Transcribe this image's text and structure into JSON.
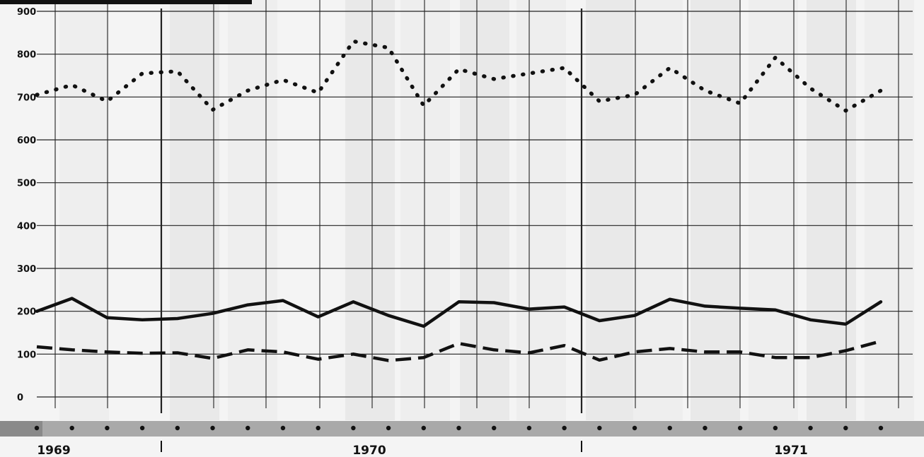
{
  "chart_data": {
    "type": "line",
    "title": "",
    "xlabel": "",
    "ylabel": "",
    "ylim": [
      0,
      900
    ],
    "yticks": [
      0,
      100,
      200,
      300,
      400,
      500,
      600,
      700,
      800,
      900
    ],
    "x_start": "1969",
    "x_end": "1971",
    "grid": true,
    "legend": "none",
    "year_labels": [
      "1969",
      "1970",
      "1971"
    ],
    "series": [
      {
        "style": "dotted",
        "color": "#111111",
        "values": [
          705,
          728,
          690,
          755,
          760,
          670,
          715,
          740,
          710,
          830,
          815,
          680,
          765,
          742,
          755,
          768,
          690,
          705,
          768,
          715,
          685,
          792,
          720,
          668,
          715
        ]
      },
      {
        "style": "solid",
        "color": "#111111",
        "values": [
          200,
          230,
          185,
          180,
          183,
          195,
          215,
          225,
          187,
          222,
          190,
          165,
          222,
          220,
          205,
          210,
          178,
          190,
          228,
          212,
          207,
          203,
          180,
          170,
          222
        ]
      },
      {
        "style": "dashed",
        "color": "#111111",
        "values": [
          117,
          110,
          105,
          102,
          103,
          90,
          110,
          105,
          88,
          100,
          85,
          92,
          125,
          110,
          103,
          120,
          86,
          105,
          113,
          105,
          105,
          92,
          92,
          108,
          130
        ]
      }
    ]
  }
}
